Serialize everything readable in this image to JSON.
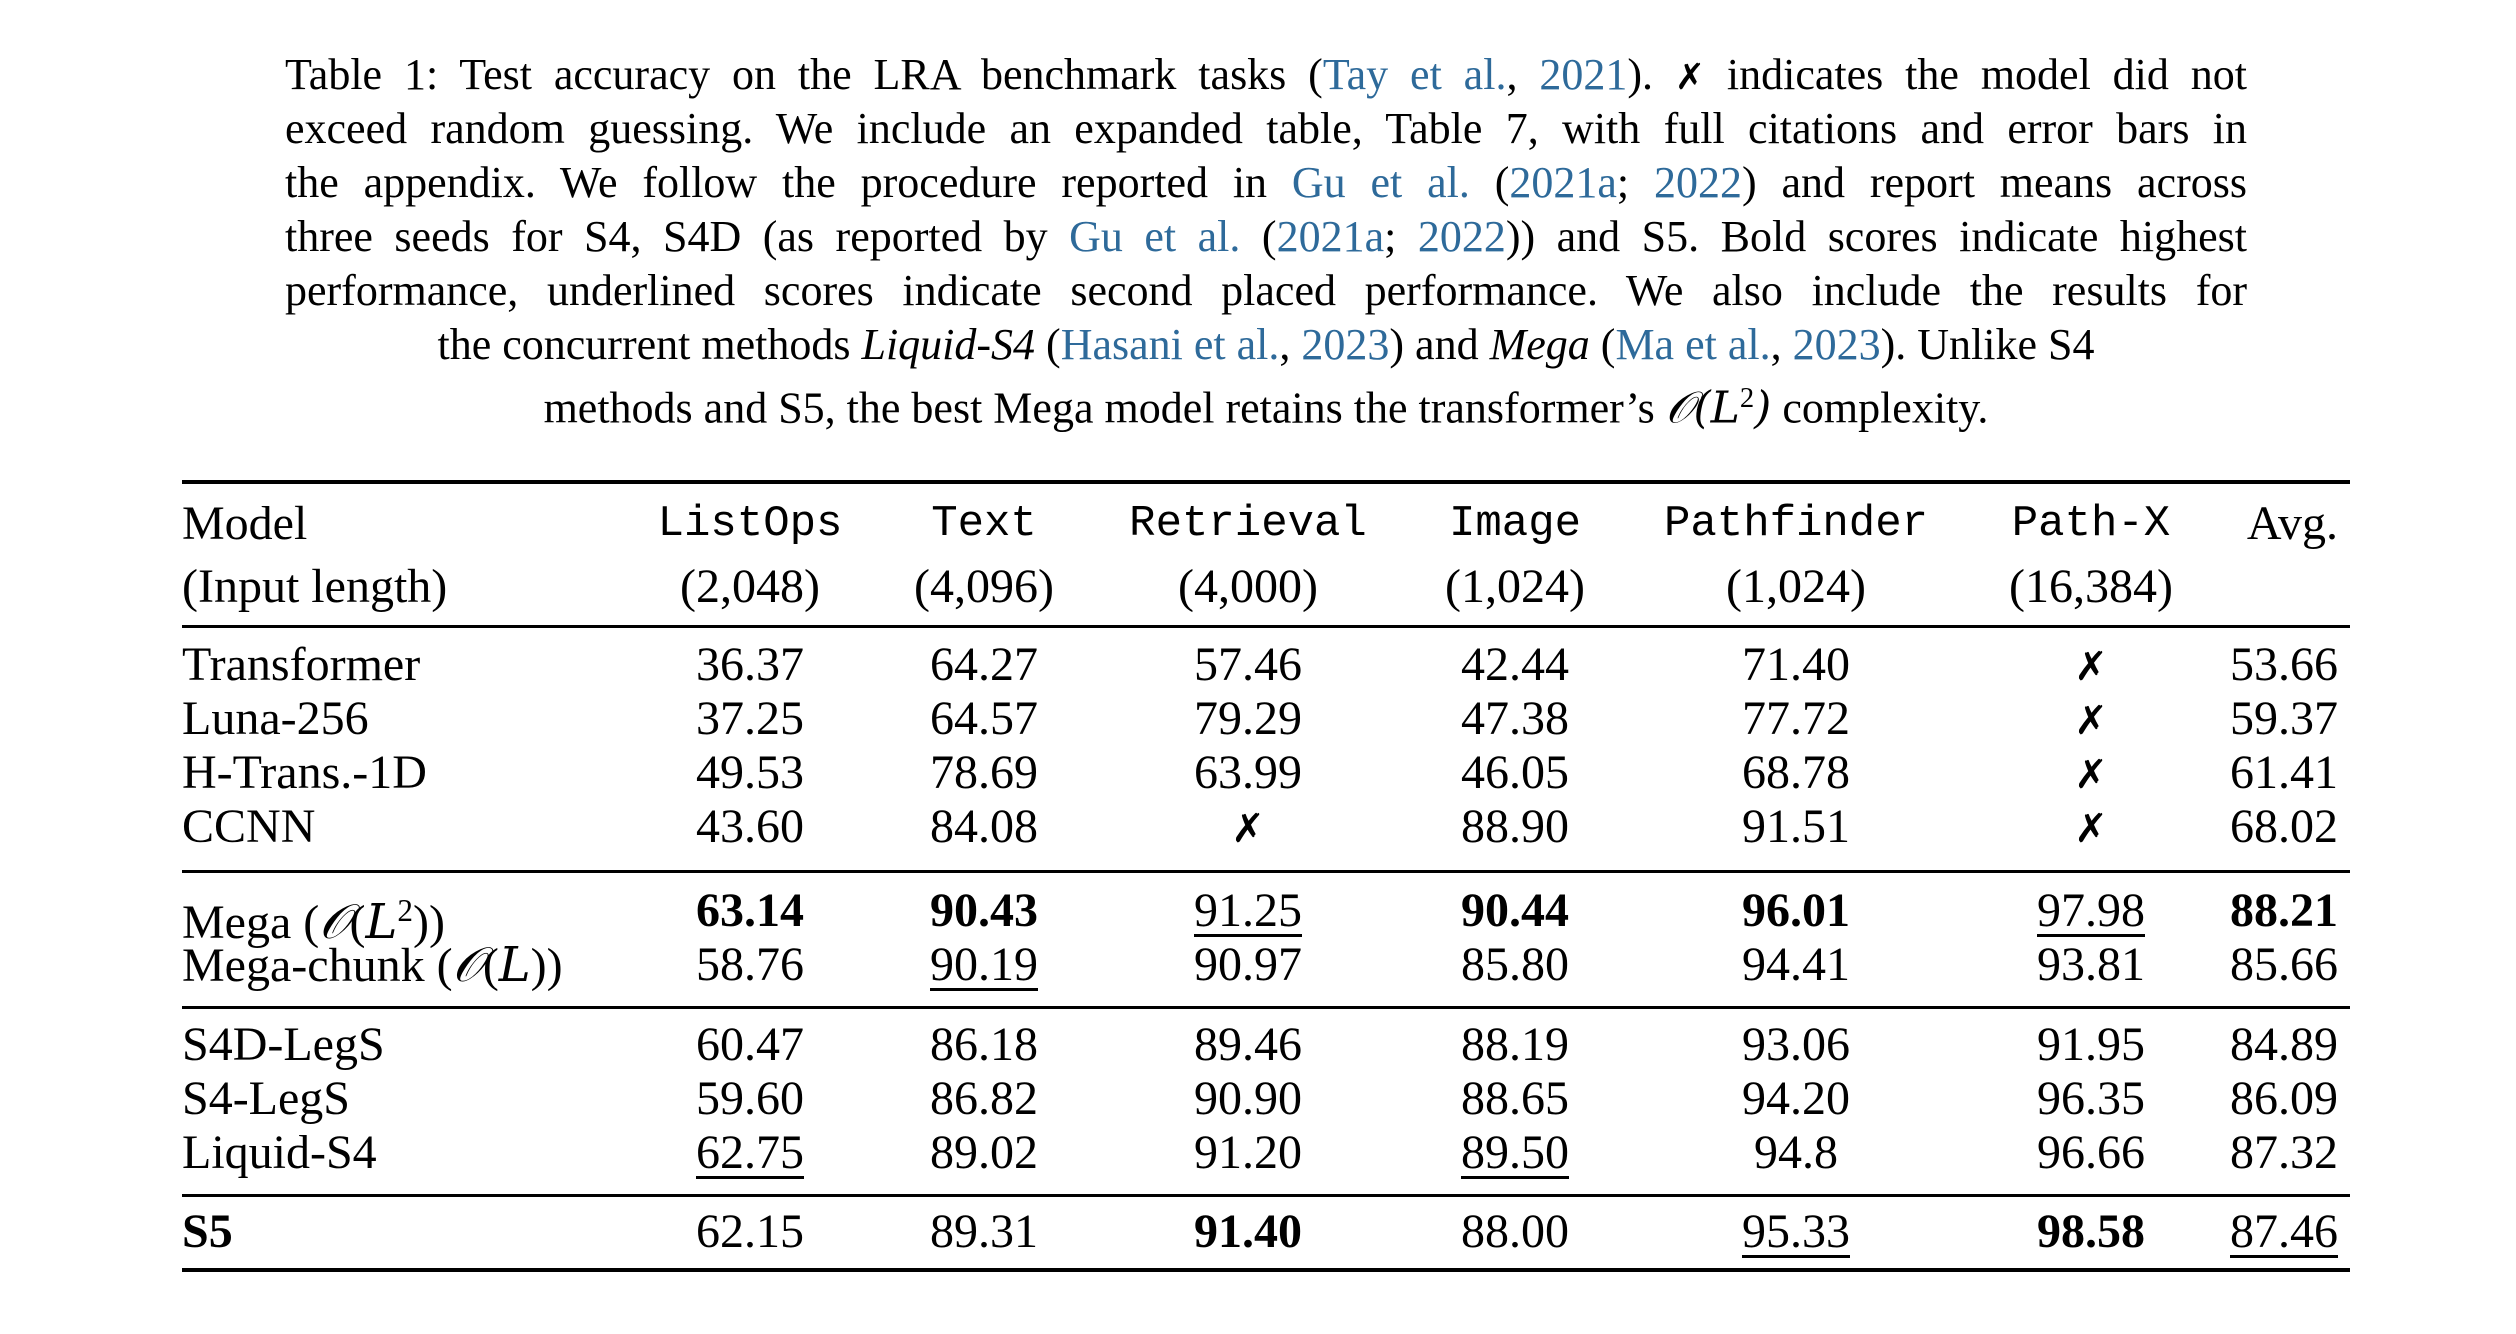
{
  "caption": {
    "lines": [
      [
        {
          "t": "Table 1: Test accuracy on the LRA benchmark tasks ("
        },
        {
          "t": "Tay et al.",
          "link": true
        },
        {
          "t": ", "
        },
        {
          "t": "2021",
          "link": true
        },
        {
          "t": "). "
        },
        {
          "t": "✗",
          "x": true
        },
        {
          "t": " indicates the model did not"
        }
      ],
      [
        {
          "t": "exceed random guessing. We include an expanded table, Table 7, with full citations and error bars in"
        }
      ],
      [
        {
          "t": "the appendix. We follow the procedure reported in "
        },
        {
          "t": "Gu et al.",
          "link": true
        },
        {
          "t": " ("
        },
        {
          "t": "2021a",
          "link": true
        },
        {
          "t": "; "
        },
        {
          "t": "2022",
          "link": true
        },
        {
          "t": ") and report means across"
        }
      ],
      [
        {
          "t": "three seeds for S4, S4D (as reported by "
        },
        {
          "t": "Gu et al.",
          "link": true
        },
        {
          "t": " ("
        },
        {
          "t": "2021a",
          "link": true
        },
        {
          "t": "; "
        },
        {
          "t": "2022",
          "link": true
        },
        {
          "t": ")) and S5. Bold scores indicate highest"
        }
      ],
      [
        {
          "t": "performance, underlined scores indicate second placed performance. We also include the results for"
        }
      ],
      [
        {
          "t": "the concurrent methods "
        },
        {
          "t": "Liquid-S4",
          "it": true
        },
        {
          "t": " ("
        },
        {
          "t": "Hasani et al.",
          "link": true
        },
        {
          "t": ", "
        },
        {
          "t": "2023",
          "link": true
        },
        {
          "t": ") and "
        },
        {
          "t": "Mega",
          "it": true
        },
        {
          "t": " ("
        },
        {
          "t": "Ma et al.",
          "link": true
        },
        {
          "t": ", "
        },
        {
          "t": "2023",
          "link": true
        },
        {
          "t": "). Unlike S4"
        }
      ],
      [
        {
          "t": "methods and S5, the best Mega model retains the transformer’s "
        },
        {
          "t": "𝒪(L",
          "math": true
        },
        {
          "t": "2",
          "sup": true
        },
        {
          "t": ")",
          "math": true
        },
        {
          "t": " complexity."
        }
      ]
    ],
    "link_color": "#2e6a9a"
  },
  "table": {
    "header": {
      "model_label": "Model",
      "model_sublabel": "(Input length)",
      "columns": [
        {
          "name": "ListOps",
          "length": "(2,048)"
        },
        {
          "name": "Text",
          "length": "(4,096)"
        },
        {
          "name": "Retrieval",
          "length": "(4,000)"
        },
        {
          "name": "Image",
          "length": "(1,024)"
        },
        {
          "name": "Pathfinder",
          "length": "(1,024)"
        },
        {
          "name": "Path-X",
          "length": "(16,384)"
        },
        {
          "name": "Avg.",
          "length": ""
        }
      ]
    },
    "groups": [
      {
        "rows": [
          {
            "model": "Transformer",
            "cells": [
              {
                "v": "36.37"
              },
              {
                "v": "64.27"
              },
              {
                "v": "57.46"
              },
              {
                "v": "42.44"
              },
              {
                "v": "71.40"
              },
              {
                "v": "✗",
                "fail": true
              },
              {
                "v": "53.66"
              }
            ]
          },
          {
            "model": "Luna-256",
            "cells": [
              {
                "v": "37.25"
              },
              {
                "v": "64.57"
              },
              {
                "v": "79.29"
              },
              {
                "v": "47.38"
              },
              {
                "v": "77.72"
              },
              {
                "v": "✗",
                "fail": true
              },
              {
                "v": "59.37"
              }
            ]
          },
          {
            "model": "H-Trans.-1D",
            "cells": [
              {
                "v": "49.53"
              },
              {
                "v": "78.69"
              },
              {
                "v": "63.99"
              },
              {
                "v": "46.05"
              },
              {
                "v": "68.78"
              },
              {
                "v": "✗",
                "fail": true
              },
              {
                "v": "61.41"
              }
            ]
          },
          {
            "model": "CCNN",
            "cells": [
              {
                "v": "43.60"
              },
              {
                "v": "84.08"
              },
              {
                "v": "✗",
                "fail": true
              },
              {
                "v": "88.90"
              },
              {
                "v": "91.51"
              },
              {
                "v": "✗",
                "fail": true
              },
              {
                "v": "68.02"
              }
            ]
          }
        ]
      },
      {
        "rows": [
          {
            "model": "Mega (𝒪(L²))",
            "cells": [
              {
                "v": "63.14",
                "bold": true
              },
              {
                "v": "90.43",
                "bold": true
              },
              {
                "v": "91.25",
                "underline": true
              },
              {
                "v": "90.44",
                "bold": true
              },
              {
                "v": "96.01",
                "bold": true
              },
              {
                "v": "97.98",
                "underline": true
              },
              {
                "v": "88.21",
                "bold": true
              }
            ]
          },
          {
            "model": "Mega-chunk (𝒪(L))",
            "cells": [
              {
                "v": "58.76"
              },
              {
                "v": "90.19",
                "underline": true
              },
              {
                "v": "90.97"
              },
              {
                "v": "85.80"
              },
              {
                "v": "94.41"
              },
              {
                "v": "93.81"
              },
              {
                "v": "85.66"
              }
            ]
          }
        ]
      },
      {
        "rows": [
          {
            "model": "S4D-LegS",
            "cells": [
              {
                "v": "60.47"
              },
              {
                "v": "86.18"
              },
              {
                "v": "89.46"
              },
              {
                "v": "88.19"
              },
              {
                "v": "93.06"
              },
              {
                "v": "91.95"
              },
              {
                "v": "84.89"
              }
            ]
          },
          {
            "model": "S4-LegS",
            "cells": [
              {
                "v": "59.60"
              },
              {
                "v": "86.82"
              },
              {
                "v": "90.90"
              },
              {
                "v": "88.65"
              },
              {
                "v": "94.20"
              },
              {
                "v": "96.35"
              },
              {
                "v": "86.09"
              }
            ]
          },
          {
            "model": "Liquid-S4",
            "cells": [
              {
                "v": "62.75",
                "underline": true
              },
              {
                "v": "89.02"
              },
              {
                "v": "91.20"
              },
              {
                "v": "89.50",
                "underline": true
              },
              {
                "v": "94.8"
              },
              {
                "v": "96.66"
              },
              {
                "v": "87.32"
              }
            ]
          }
        ]
      },
      {
        "rows": [
          {
            "model": "S5",
            "model_bold": true,
            "cells": [
              {
                "v": "62.15"
              },
              {
                "v": "89.31"
              },
              {
                "v": "91.40",
                "bold": true
              },
              {
                "v": "88.00"
              },
              {
                "v": "95.33",
                "underline": true
              },
              {
                "v": "98.58",
                "bold": true
              },
              {
                "v": "87.46",
                "underline": true
              }
            ]
          }
        ]
      }
    ]
  }
}
